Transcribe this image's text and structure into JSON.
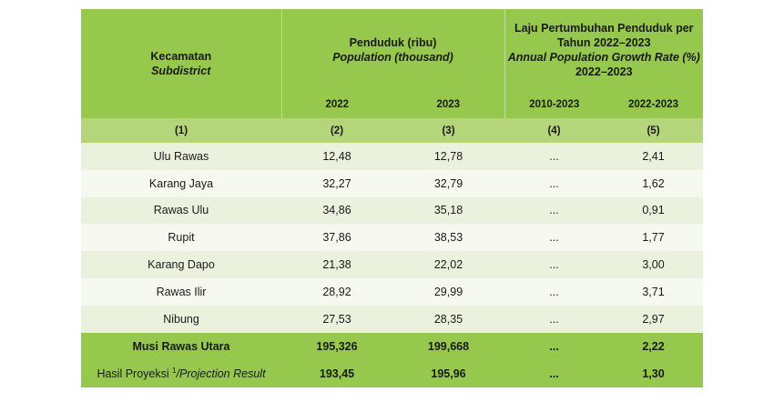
{
  "header": {
    "col1_id": "Kecamatan",
    "col1_en": "Subdistrict",
    "col2_id": "Penduduk (ribu)",
    "col2_en": "Population (thousand)",
    "col3_id_line1": "Laju Pertumbuhan Penduduk per",
    "col3_id_line2": "Tahun 2022–2023",
    "col3_en_line1": "Annual Population Growth Rate (%)",
    "col3_en_line2": "2022–2023",
    "years": [
      "2022",
      "2023",
      "2010-2023",
      "2022-2023"
    ],
    "col_numbers": [
      "(1)",
      "(2)",
      "(3)",
      "(4)",
      "(5)"
    ]
  },
  "rows": [
    {
      "name": "Ulu Rawas",
      "p2022": "12,48",
      "p2023": "12,78",
      "g1": "...",
      "g2": "2,41"
    },
    {
      "name": "Karang Jaya",
      "p2022": "32,27",
      "p2023": "32,79",
      "g1": "...",
      "g2": "1,62"
    },
    {
      "name": "Rawas Ulu",
      "p2022": "34,86",
      "p2023": "35,18",
      "g1": "...",
      "g2": "0,91"
    },
    {
      "name": "Rupit",
      "p2022": "37,86",
      "p2023": "38,53",
      "g1": "...",
      "g2": "1,77"
    },
    {
      "name": "Karang Dapo",
      "p2022": "21,38",
      "p2023": "22,02",
      "g1": "...",
      "g2": "3,00"
    },
    {
      "name": "Rawas Ilir",
      "p2022": "28,92",
      "p2023": "29,99",
      "g1": "...",
      "g2": "3,71"
    },
    {
      "name": "Nibung",
      "p2022": "27,53",
      "p2023": "28,35",
      "g1": "...",
      "g2": "2,97"
    }
  ],
  "total": {
    "name": "Musi Rawas Utara",
    "p2022": "195,326",
    "p2023": "199,668",
    "g1": "...",
    "g2": "2,22"
  },
  "projection": {
    "name_id": "Hasil Proyeksi ",
    "footnote": "1",
    "name_en": "/Projection Result",
    "p2022": "193,45",
    "p2023": "195,96",
    "g1": "...",
    "g2": "1,30"
  }
}
